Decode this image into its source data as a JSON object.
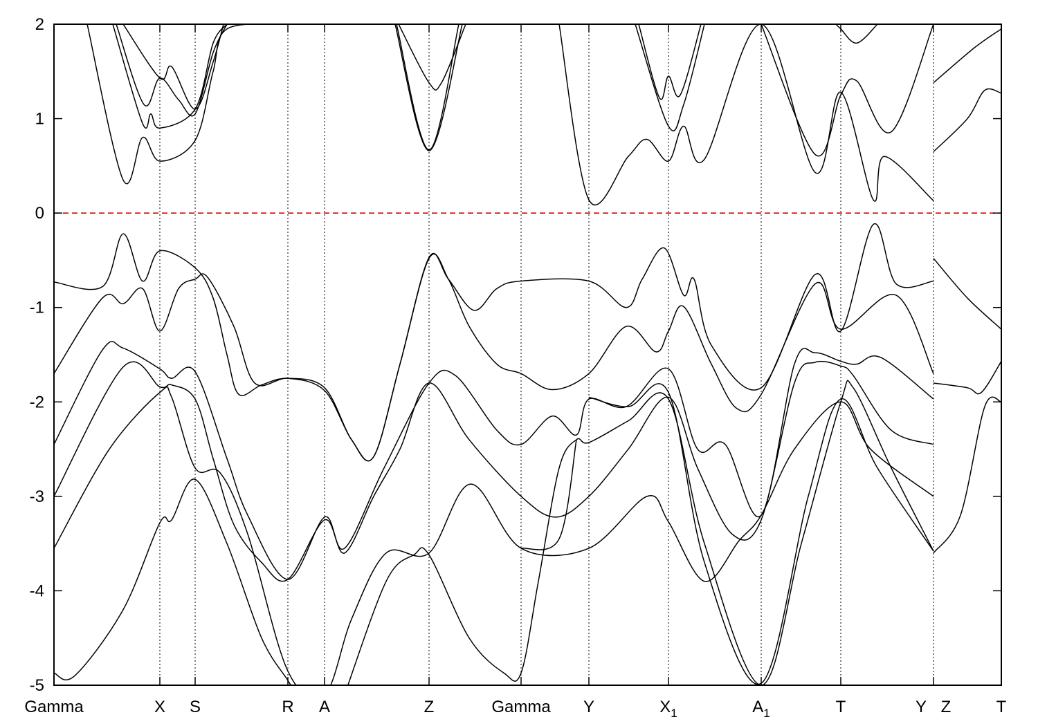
{
  "chart_data": {
    "type": "line",
    "title": "",
    "xlabel": "",
    "ylabel": "",
    "ylim": [
      -5,
      2
    ],
    "yticks": [
      "2",
      "1",
      "0",
      "-1",
      "-2",
      "-3",
      "-4",
      "-5"
    ],
    "ytick_values": [
      2,
      1,
      0,
      -1,
      -2,
      -3,
      -4,
      -5
    ],
    "grid": false,
    "fermi_level": {
      "value": 0,
      "color": "#e00000",
      "style": "dashed"
    },
    "band_color": "#000000",
    "kpoints": [
      {
        "label": "Gamma",
        "k": 0
      },
      {
        "label": "X",
        "k": 1.53
      },
      {
        "label": "S",
        "k": 2.04
      },
      {
        "label": "R",
        "k": 3.38
      },
      {
        "label": "A",
        "k": 3.91
      },
      {
        "label": "Z",
        "k": 5.42
      },
      {
        "label": "Gamma",
        "k": 6.75
      },
      {
        "label": "Y",
        "k": 7.73
      },
      {
        "label": "X₁",
        "k": 8.88
      },
      {
        "label": "A₁",
        "k": 10.22
      },
      {
        "label": "T",
        "k": 11.37
      },
      {
        "label": "Y",
        "k": 12.71,
        "side": "left"
      },
      {
        "label": "Z",
        "k": 12.71,
        "side": "right"
      },
      {
        "label": "T",
        "k": 13.69
      }
    ],
    "xlim": [
      0,
      13.69
    ],
    "bands": [
      [
        [
          [
            0,
            -0.73
          ],
          [
            0.7,
            -0.78
          ],
          [
            1.0,
            -0.22
          ],
          [
            1.28,
            -0.72
          ],
          [
            1.53,
            -0.4
          ],
          [
            2.04,
            -0.58
          ],
          [
            2.3,
            -0.9
          ],
          [
            2.5,
            -1.5
          ],
          [
            2.67,
            -1.92
          ],
          [
            3.0,
            -1.82
          ],
          [
            3.38,
            -1.75
          ],
          [
            3.91,
            -1.85
          ],
          [
            4.3,
            -2.4
          ],
          [
            4.62,
            -2.58
          ],
          [
            5.0,
            -1.6
          ],
          [
            5.42,
            -0.47
          ],
          [
            5.7,
            -0.7
          ],
          [
            6.07,
            -1.03
          ],
          [
            6.4,
            -0.8
          ],
          [
            6.75,
            -0.72
          ],
          [
            7.73,
            -0.72
          ],
          [
            8.27,
            -1.0
          ],
          [
            8.5,
            -0.7
          ],
          [
            8.82,
            -0.37
          ],
          [
            9.1,
            -0.87
          ],
          [
            9.25,
            -0.7
          ],
          [
            9.5,
            -1.4
          ],
          [
            10.22,
            -1.85
          ],
          [
            11.0,
            -0.65
          ],
          [
            11.37,
            -1.25
          ],
          [
            11.84,
            -0.12
          ],
          [
            12.17,
            -0.75
          ],
          [
            12.71,
            -0.72
          ]
        ]
      ],
      [
        [
          [
            0,
            -1.7
          ],
          [
            0.7,
            -0.9
          ],
          [
            1.0,
            -0.96
          ],
          [
            1.28,
            -0.8
          ],
          [
            1.53,
            -1.25
          ],
          [
            1.8,
            -0.8
          ],
          [
            2.04,
            -0.7
          ],
          [
            2.22,
            -0.68
          ],
          [
            2.6,
            -1.2
          ],
          [
            2.9,
            -1.8
          ],
          [
            3.38,
            -1.75
          ],
          [
            3.91,
            -1.88
          ],
          [
            4.3,
            -2.4
          ],
          [
            4.62,
            -2.58
          ],
          [
            5.0,
            -1.6
          ],
          [
            5.42,
            -0.48
          ],
          [
            5.7,
            -0.7
          ],
          [
            6.0,
            -1.2
          ],
          [
            6.4,
            -1.6
          ],
          [
            6.75,
            -1.7
          ],
          [
            7.2,
            -1.87
          ],
          [
            7.73,
            -1.7
          ],
          [
            8.27,
            -1.2
          ],
          [
            8.7,
            -1.47
          ],
          [
            8.88,
            -1.25
          ],
          [
            9.1,
            -0.99
          ],
          [
            9.5,
            -1.6
          ],
          [
            9.87,
            -2.07
          ],
          [
            10.22,
            -1.92
          ],
          [
            11.0,
            -0.75
          ],
          [
            11.37,
            -1.23
          ],
          [
            12.17,
            -0.87
          ],
          [
            12.71,
            -1.7
          ]
        ]
      ],
      [
        [
          [
            0,
            -2.45
          ],
          [
            0.7,
            -1.45
          ],
          [
            1.0,
            -1.43
          ],
          [
            1.53,
            -1.65
          ],
          [
            1.7,
            -1.75
          ],
          [
            2.04,
            -1.68
          ],
          [
            2.5,
            -2.6
          ],
          [
            2.8,
            -3.2
          ],
          [
            3.38,
            -3.88
          ],
          [
            3.91,
            -3.22
          ],
          [
            4.2,
            -3.55
          ],
          [
            4.77,
            -2.7
          ],
          [
            5.42,
            -1.8
          ],
          [
            5.8,
            -1.72
          ],
          [
            6.4,
            -2.3
          ],
          [
            6.75,
            -2.45
          ],
          [
            7.2,
            -2.15
          ],
          [
            7.55,
            -2.35
          ],
          [
            7.73,
            -1.97
          ],
          [
            8.27,
            -2.05
          ],
          [
            8.88,
            -1.65
          ],
          [
            9.3,
            -2.5
          ],
          [
            9.7,
            -2.45
          ],
          [
            10.22,
            -3.2
          ],
          [
            10.7,
            -1.6
          ],
          [
            11.0,
            -1.48
          ],
          [
            11.37,
            -1.57
          ],
          [
            11.6,
            -1.6
          ],
          [
            11.95,
            -1.53
          ],
          [
            12.71,
            -1.97
          ]
        ]
      ],
      [
        [
          [
            0,
            -3.0
          ],
          [
            1.0,
            -1.63
          ],
          [
            1.53,
            -1.84
          ],
          [
            1.7,
            -1.82
          ],
          [
            2.04,
            -1.97
          ],
          [
            2.3,
            -2.6
          ],
          [
            2.6,
            -3.3
          ],
          [
            3.0,
            -3.7
          ],
          [
            3.38,
            -3.88
          ],
          [
            3.91,
            -3.25
          ],
          [
            4.2,
            -3.6
          ],
          [
            4.62,
            -3.0
          ],
          [
            5.0,
            -2.5
          ],
          [
            5.42,
            -1.8
          ],
          [
            6.0,
            -2.4
          ],
          [
            6.75,
            -3.0
          ],
          [
            7.25,
            -3.22
          ],
          [
            7.73,
            -3.0
          ],
          [
            8.3,
            -2.5
          ],
          [
            8.88,
            -1.95
          ],
          [
            9.3,
            -2.7
          ],
          [
            9.8,
            -3.4
          ],
          [
            10.22,
            -3.25
          ],
          [
            10.7,
            -1.8
          ],
          [
            11.0,
            -1.58
          ],
          [
            11.37,
            -1.62
          ],
          [
            11.55,
            -1.72
          ],
          [
            12.1,
            -2.3
          ],
          [
            12.71,
            -2.45
          ]
        ]
      ],
      [
        [
          [
            0,
            -3.55
          ],
          [
            0.8,
            -2.5
          ],
          [
            1.53,
            -1.9
          ],
          [
            1.7,
            -1.95
          ],
          [
            2.04,
            -2.7
          ],
          [
            2.4,
            -2.75
          ],
          [
            2.8,
            -3.4
          ],
          [
            3.38,
            -4.85
          ],
          [
            3.91,
            -5.1
          ],
          [
            4.3,
            -4.3
          ],
          [
            4.8,
            -3.6
          ],
          [
            5.42,
            -3.6
          ],
          [
            6.02,
            -2.87
          ],
          [
            6.75,
            -3.55
          ],
          [
            7.73,
            -3.55
          ],
          [
            8.57,
            -3.0
          ],
          [
            8.88,
            -3.27
          ],
          [
            9.4,
            -3.9
          ],
          [
            9.9,
            -3.47
          ],
          [
            10.22,
            -3.2
          ],
          [
            10.7,
            -2.5
          ],
          [
            11.37,
            -2.0
          ],
          [
            11.8,
            -2.5
          ],
          [
            12.71,
            -3.0
          ]
        ]
      ],
      [
        [
          [
            0,
            -4.87
          ],
          [
            0.3,
            -4.9
          ],
          [
            1.0,
            -4.2
          ],
          [
            1.53,
            -3.28
          ],
          [
            1.7,
            -3.25
          ],
          [
            2.04,
            -2.82
          ],
          [
            2.5,
            -3.5
          ],
          [
            3.0,
            -4.5
          ],
          [
            3.38,
            -4.95
          ],
          [
            3.5,
            -5.1
          ]
        ],
        [
          [
            4.2,
            -5.1
          ],
          [
            4.8,
            -3.9
          ],
          [
            5.2,
            -3.62
          ],
          [
            5.42,
            -3.62
          ],
          [
            6.0,
            -4.5
          ],
          [
            6.5,
            -4.87
          ],
          [
            6.75,
            -4.87
          ],
          [
            7.0,
            -3.9
          ],
          [
            7.3,
            -2.7
          ],
          [
            7.55,
            -2.4
          ],
          [
            7.73,
            -2.43
          ],
          [
            8.3,
            -2.2
          ],
          [
            8.88,
            -1.97
          ],
          [
            9.4,
            -3.5
          ],
          [
            10.22,
            -5.0
          ],
          [
            10.8,
            -3.5
          ],
          [
            11.37,
            -2.0
          ],
          [
            11.55,
            -1.85
          ],
          [
            12.1,
            -2.7
          ],
          [
            12.71,
            -3.58
          ]
        ]
      ],
      [
        [
          [
            6.75,
            -3.55
          ],
          [
            7.3,
            -3.45
          ],
          [
            7.55,
            -2.4
          ]
        ],
        [
          [
            7.73,
            -1.95
          ],
          [
            8.3,
            -2.05
          ],
          [
            8.88,
            -1.9
          ],
          [
            9.4,
            -3.7
          ],
          [
            10.22,
            -4.98
          ],
          [
            10.9,
            -3.0
          ],
          [
            11.37,
            -1.97
          ],
          [
            11.9,
            -2.7
          ],
          [
            12.71,
            -3.58
          ]
        ]
      ],
      [
        [
          [
            0.48,
            2.0
          ],
          [
            1.0,
            0.35
          ],
          [
            1.28,
            0.8
          ],
          [
            1.53,
            0.55
          ],
          [
            2.04,
            0.77
          ],
          [
            2.3,
            1.5
          ],
          [
            2.5,
            1.95
          ],
          [
            3.38,
            2.0
          ]
        ],
        [
          [
            4.93,
            2.0
          ],
          [
            5.42,
            0.66
          ],
          [
            5.9,
            2.0
          ]
        ],
        [
          [
            7.3,
            2.0
          ],
          [
            7.73,
            0.14
          ],
          [
            8.3,
            0.6
          ],
          [
            8.57,
            0.78
          ],
          [
            8.88,
            0.55
          ],
          [
            9.1,
            0.92
          ],
          [
            9.4,
            0.57
          ],
          [
            10.22,
            2.0
          ],
          [
            11.0,
            0.43
          ],
          [
            11.37,
            1.28
          ],
          [
            11.84,
            0.14
          ],
          [
            12.0,
            0.6
          ],
          [
            12.71,
            0.13
          ]
        ]
      ],
      [
        [
          [
            0.85,
            2.0
          ],
          [
            1.28,
            0.95
          ],
          [
            1.4,
            1.05
          ],
          [
            1.53,
            0.9
          ],
          [
            2.04,
            1.1
          ],
          [
            2.3,
            1.8
          ],
          [
            2.5,
            2.0
          ]
        ],
        [
          [
            4.95,
            2.0
          ],
          [
            5.42,
            0.67
          ],
          [
            5.85,
            2.0
          ]
        ],
        [
          [
            8.4,
            2.0
          ],
          [
            8.88,
            0.92
          ],
          [
            9.1,
            1.15
          ],
          [
            9.4,
            2.0
          ]
        ],
        [
          [
            10.22,
            2.0
          ],
          [
            11.0,
            0.62
          ],
          [
            11.37,
            1.25
          ],
          [
            11.6,
            1.4
          ],
          [
            12.1,
            0.86
          ],
          [
            12.71,
            2.0
          ]
        ]
      ],
      [
        [
          [
            0.9,
            2.0
          ],
          [
            1.3,
            1.15
          ],
          [
            1.53,
            1.43
          ],
          [
            1.8,
            1.2
          ],
          [
            2.04,
            1.05
          ],
          [
            2.3,
            1.7
          ],
          [
            2.5,
            2.0
          ]
        ],
        [
          [
            4.98,
            2.0
          ],
          [
            5.42,
            1.38
          ],
          [
            5.6,
            1.38
          ],
          [
            5.95,
            2.0
          ]
        ],
        [
          [
            8.45,
            2.0
          ],
          [
            8.75,
            1.22
          ],
          [
            8.88,
            1.45
          ],
          [
            9.05,
            1.25
          ],
          [
            9.35,
            2.0
          ]
        ],
        [
          [
            11.3,
            2.0
          ],
          [
            11.37,
            1.95
          ],
          [
            11.6,
            1.8
          ],
          [
            11.9,
            2.0
          ]
        ]
      ],
      [
        [
          [
            1.0,
            2.0
          ],
          [
            1.53,
            1.43
          ],
          [
            1.7,
            1.55
          ],
          [
            2.04,
            1.1
          ],
          [
            2.3,
            1.6
          ],
          [
            2.45,
            2.0
          ]
        ]
      ],
      [
        [
          [
            12.71,
            -0.48
          ],
          [
            13.2,
            -0.9
          ],
          [
            13.69,
            -1.23
          ]
        ]
      ],
      [
        [
          [
            12.71,
            -1.8
          ],
          [
            13.2,
            -1.85
          ],
          [
            13.4,
            -1.9
          ],
          [
            13.69,
            -1.57
          ]
        ]
      ],
      [
        [
          [
            12.71,
            -3.6
          ],
          [
            13.1,
            -3.2
          ],
          [
            13.45,
            -2.05
          ],
          [
            13.69,
            -2.0
          ]
        ]
      ],
      [
        [
          [
            12.71,
            1.38
          ],
          [
            13.3,
            1.75
          ],
          [
            13.69,
            1.95
          ]
        ]
      ],
      [
        [
          [
            12.71,
            0.65
          ],
          [
            13.2,
            1.0
          ],
          [
            13.45,
            1.3
          ],
          [
            13.69,
            1.27
          ]
        ]
      ]
    ]
  }
}
